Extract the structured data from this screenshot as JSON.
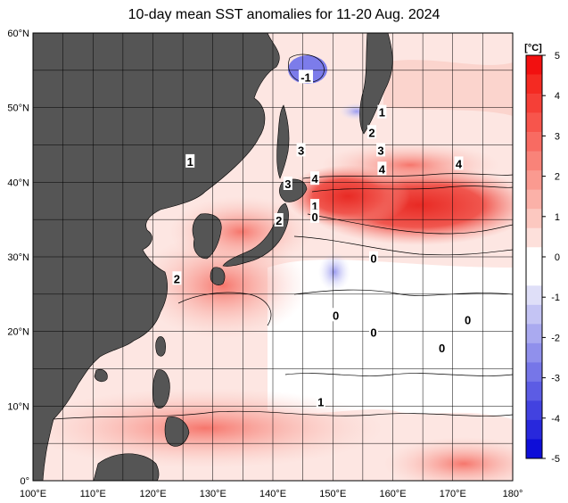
{
  "title": "10-day mean SST anomalies for 11-20 Aug. 2024",
  "map": {
    "lon_range": [
      100,
      180
    ],
    "lat_range": [
      0,
      60
    ],
    "lon_ticks": [
      {
        "lon": 100,
        "label": "100°E"
      },
      {
        "lon": 110,
        "label": "110°E"
      },
      {
        "lon": 120,
        "label": "120°E"
      },
      {
        "lon": 130,
        "label": "130°E"
      },
      {
        "lon": 140,
        "label": "140°E"
      },
      {
        "lon": 150,
        "label": "150°E"
      },
      {
        "lon": 160,
        "label": "160°E"
      },
      {
        "lon": 170,
        "label": "170°E"
      },
      {
        "lon": 180,
        "label": "180°"
      }
    ],
    "lat_ticks": [
      {
        "lat": 60,
        "label": "60°N"
      },
      {
        "lat": 50,
        "label": "50°N"
      },
      {
        "lat": 40,
        "label": "40°N"
      },
      {
        "lat": 30,
        "label": "30°N"
      },
      {
        "lat": 20,
        "label": "20°N"
      },
      {
        "lat": 10,
        "label": "10°N"
      },
      {
        "lat": 0,
        "label": "0°"
      }
    ],
    "land_color": "#555555",
    "grid_color": "#000000"
  },
  "colorbar": {
    "unit": "[°C]",
    "range": [
      -5,
      5
    ],
    "ticks": [
      "5",
      "4",
      "3",
      "2",
      "1",
      "0",
      "-1",
      "-2",
      "-3",
      "-4",
      "-5"
    ],
    "colors_top_to_bottom": [
      "#f21010",
      "#f42a22",
      "#f53f37",
      "#f7554c",
      "#f86b62",
      "#f98379",
      "#fa9a90",
      "#fbb1a8",
      "#fcc8c0",
      "#fde0db",
      "#ffffff",
      "#ffffff",
      "#dfdff8",
      "#c4c4f4",
      "#aaaaf0",
      "#9090ec",
      "#7676e8",
      "#5c5ce4",
      "#4242e0",
      "#2828dc",
      "#0e0ed8"
    ]
  },
  "contour_labels": [
    {
      "text": "-1",
      "lon": 145.5,
      "lat": 54.1
    },
    {
      "text": "1",
      "lon": 158.2,
      "lat": 49.4
    },
    {
      "text": "2",
      "lon": 156.5,
      "lat": 46.7
    },
    {
      "text": "3",
      "lon": 144.7,
      "lat": 44.3
    },
    {
      "text": "3",
      "lon": 158.0,
      "lat": 44.3
    },
    {
      "text": "4",
      "lon": 158.2,
      "lat": 41.8
    },
    {
      "text": "4",
      "lon": 171.0,
      "lat": 42.5
    },
    {
      "text": "4",
      "lon": 147.0,
      "lat": 40.5
    },
    {
      "text": "3",
      "lon": 142.5,
      "lat": 39.8
    },
    {
      "text": "1",
      "lon": 126.2,
      "lat": 42.8
    },
    {
      "text": "1",
      "lon": 147.0,
      "lat": 36.8
    },
    {
      "text": "0",
      "lon": 147.0,
      "lat": 35.4
    },
    {
      "text": "2",
      "lon": 141.0,
      "lat": 34.9
    },
    {
      "text": "0",
      "lon": 156.8,
      "lat": 29.8
    },
    {
      "text": "2",
      "lon": 124.0,
      "lat": 27.1
    },
    {
      "text": "0",
      "lon": 150.5,
      "lat": 22.2
    },
    {
      "text": "0",
      "lon": 156.8,
      "lat": 19.9
    },
    {
      "text": "0",
      "lon": 172.5,
      "lat": 21.6
    },
    {
      "text": "0",
      "lon": 168.2,
      "lat": 17.8
    },
    {
      "text": "1",
      "lon": 148.0,
      "lat": 10.6
    }
  ]
}
